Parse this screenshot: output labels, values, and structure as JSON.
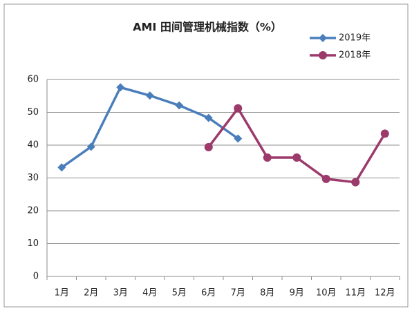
{
  "chart_data": {
    "type": "line",
    "title": "AMI 田间管理机械指数（%）",
    "categories": [
      "1月",
      "2月",
      "3月",
      "4月",
      "5月",
      "6月",
      "7月",
      "8月",
      "9月",
      "10月",
      "11月",
      "12月"
    ],
    "series": [
      {
        "name": "2019年",
        "color": "#4a7ebb",
        "marker": "diamond",
        "values": [
          33.2,
          39.5,
          57.6,
          55.1,
          52.1,
          48.3,
          42.0,
          null,
          null,
          null,
          null,
          null
        ]
      },
      {
        "name": "2018年",
        "color": "#9b3a6b",
        "marker": "circle",
        "values": [
          null,
          null,
          null,
          null,
          null,
          39.4,
          51.2,
          36.2,
          36.2,
          29.7,
          28.7,
          43.5
        ]
      }
    ],
    "ylim": [
      0,
      60
    ],
    "yticks": [
      0,
      10,
      20,
      30,
      40,
      50,
      60
    ],
    "grid": true,
    "legend": "top-right"
  }
}
